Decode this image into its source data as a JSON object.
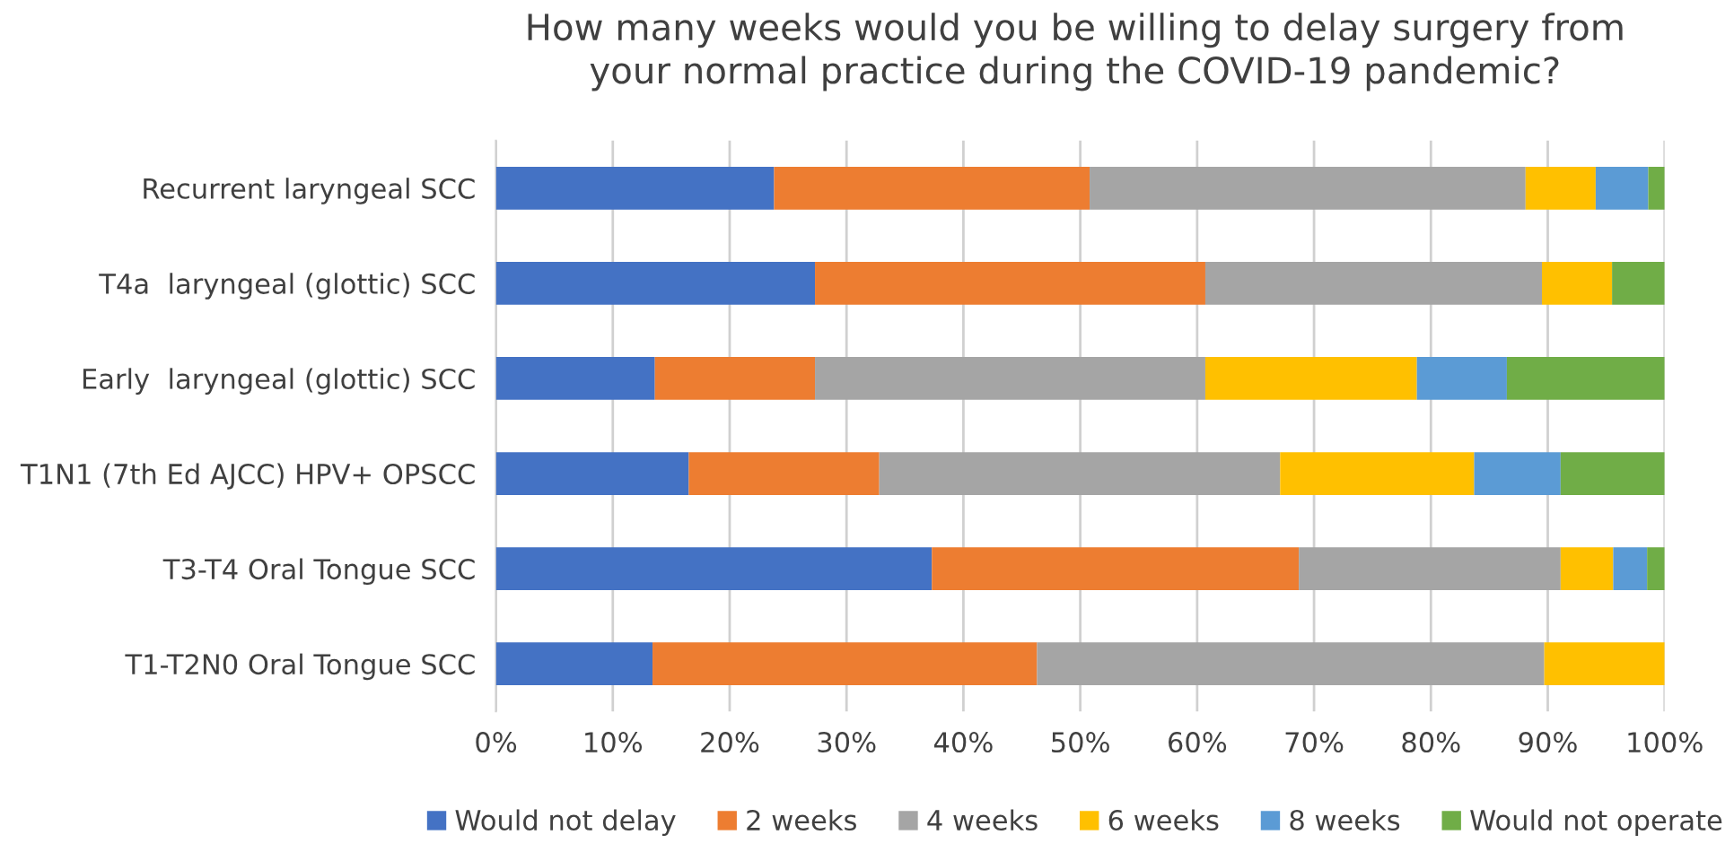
{
  "chart_data": {
    "type": "bar",
    "orientation": "horizontal",
    "stacked": true,
    "title": "How many weeks would you be willing to delay surgery from\nyour normal practice during the COVID-19 pandemic?",
    "categories": [
      "Recurrent laryngeal SCC",
      "T4a  laryngeal (glottic) SCC",
      "Early  laryngeal (glottic) SCC",
      "T1N1 (7th Ed AJCC) HPV+ OPSCC",
      "T3-T4 Oral Tongue SCC",
      "T1-T2N0 Oral Tongue SCC"
    ],
    "series": [
      {
        "name": "Would not delay",
        "color": "#4472c4",
        "values": [
          23.8,
          27.3,
          13.6,
          16.5,
          37.3,
          13.4
        ]
      },
      {
        "name": "2 weeks",
        "color": "#ed7d31",
        "values": [
          27.0,
          33.4,
          13.7,
          16.3,
          31.4,
          32.9
        ]
      },
      {
        "name": "4 weeks",
        "color": "#a5a5a5",
        "values": [
          37.3,
          28.8,
          33.4,
          34.3,
          22.4,
          43.4
        ]
      },
      {
        "name": "6 weeks",
        "color": "#ffc000",
        "values": [
          6.0,
          6.0,
          18.1,
          16.6,
          4.5,
          10.3
        ]
      },
      {
        "name": "8 weeks",
        "color": "#5b9bd5",
        "values": [
          4.5,
          0,
          7.7,
          7.4,
          2.9,
          0
        ]
      },
      {
        "name": "Would not operate",
        "color": "#70ad47",
        "values": [
          1.4,
          4.5,
          13.5,
          8.9,
          1.5,
          0
        ]
      }
    ],
    "xlim": [
      0,
      100
    ],
    "xticks": [
      {
        "value": 0,
        "label": "0%"
      },
      {
        "value": 10,
        "label": "10%"
      },
      {
        "value": 20,
        "label": "20%"
      },
      {
        "value": 30,
        "label": "30%"
      },
      {
        "value": 40,
        "label": "40%"
      },
      {
        "value": 50,
        "label": "50%"
      },
      {
        "value": 60,
        "label": "60%"
      },
      {
        "value": 70,
        "label": "70%"
      },
      {
        "value": 80,
        "label": "80%"
      },
      {
        "value": 90,
        "label": "90%"
      },
      {
        "value": 100,
        "label": "100%"
      }
    ],
    "grid": "x",
    "legend": "bottom"
  }
}
